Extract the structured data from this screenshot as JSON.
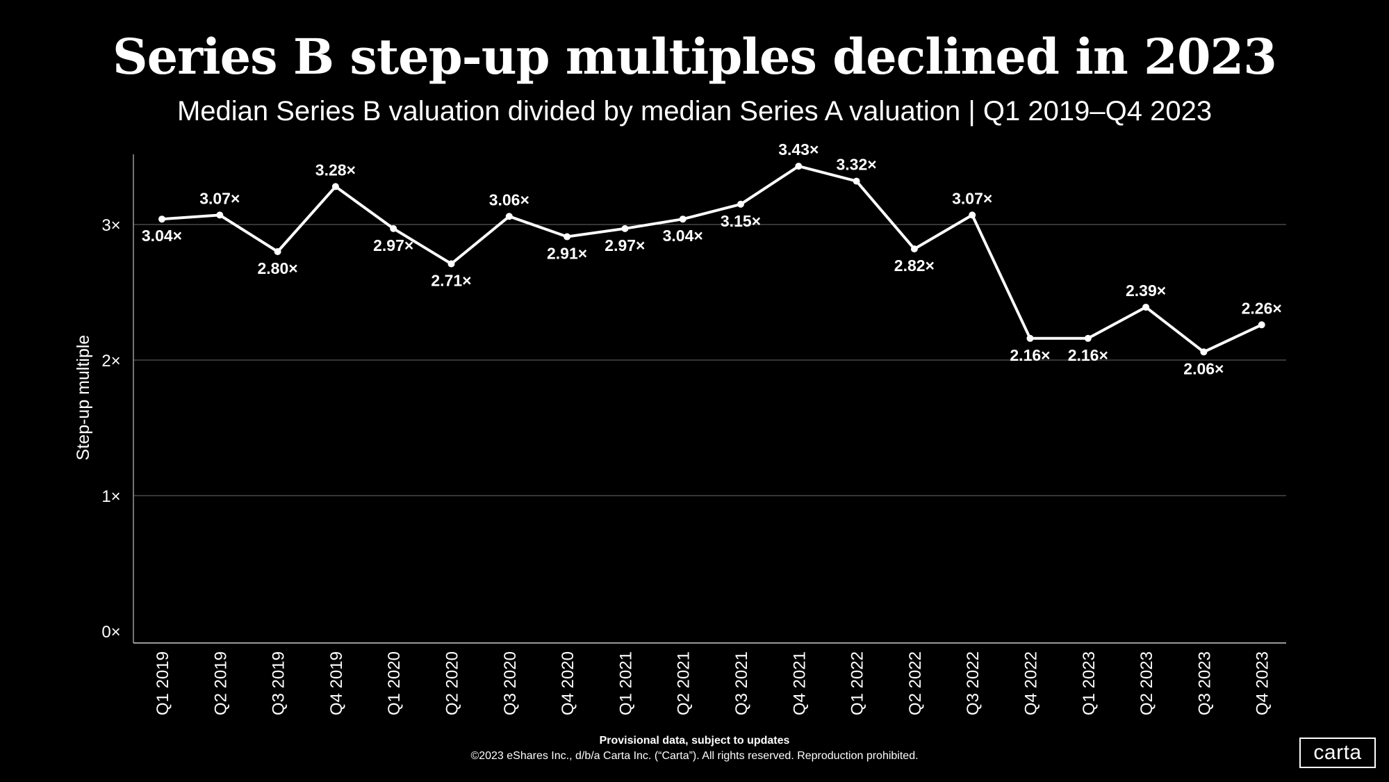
{
  "colors": {
    "background": "#000000",
    "line": "#ffffff",
    "grid": "#6b6b6b",
    "text": "#ffffff"
  },
  "chart_data": {
    "type": "line",
    "title": "Series B step-up multiples declined in 2023",
    "subtitle": "Median Series B valuation divided by median Series A valuation | Q1 2019–Q4 2023",
    "xlabel": "",
    "ylabel": "Step-up multiple",
    "ylim": [
      0,
      3.6
    ],
    "yticks": [
      0,
      1,
      2,
      3
    ],
    "ytick_labels": [
      "0×",
      "1×",
      "2×",
      "3×"
    ],
    "grid": true,
    "categories": [
      "Q1 2019",
      "Q2 2019",
      "Q3 2019",
      "Q4 2019",
      "Q1 2020",
      "Q2 2020",
      "Q3 2020",
      "Q4 2020",
      "Q1 2021",
      "Q2 2021",
      "Q3 2021",
      "Q4 2021",
      "Q1 2022",
      "Q2 2022",
      "Q3 2022",
      "Q4 2022",
      "Q1 2023",
      "Q2 2023",
      "Q3 2023",
      "Q4 2023"
    ],
    "values": [
      3.04,
      3.07,
      2.8,
      3.28,
      2.97,
      2.71,
      3.06,
      2.91,
      2.97,
      3.04,
      3.15,
      3.43,
      3.32,
      2.82,
      3.07,
      2.16,
      2.16,
      2.39,
      2.06,
      2.26
    ],
    "data_labels": [
      "3.04×",
      "3.07×",
      "2.80×",
      "3.28×",
      "2.97×",
      "2.71×",
      "3.06×",
      "2.91×",
      "2.97×",
      "3.04×",
      "3.15×",
      "3.43×",
      "3.32×",
      "2.82×",
      "3.07×",
      "2.16×",
      "2.16×",
      "2.39×",
      "2.06×",
      "2.26×"
    ],
    "label_positions": [
      "below",
      "above",
      "below",
      "above",
      "below",
      "below",
      "above",
      "below",
      "below",
      "below",
      "below",
      "above",
      "above",
      "below",
      "above",
      "below",
      "below",
      "above",
      "below",
      "above"
    ]
  },
  "footer": {
    "note": "Provisional data, subject to updates",
    "copyright": "©2023 eShares Inc., d/b/a Carta Inc. (“Carta”). All rights reserved. Reproduction prohibited."
  },
  "logo": {
    "text": "carta"
  }
}
